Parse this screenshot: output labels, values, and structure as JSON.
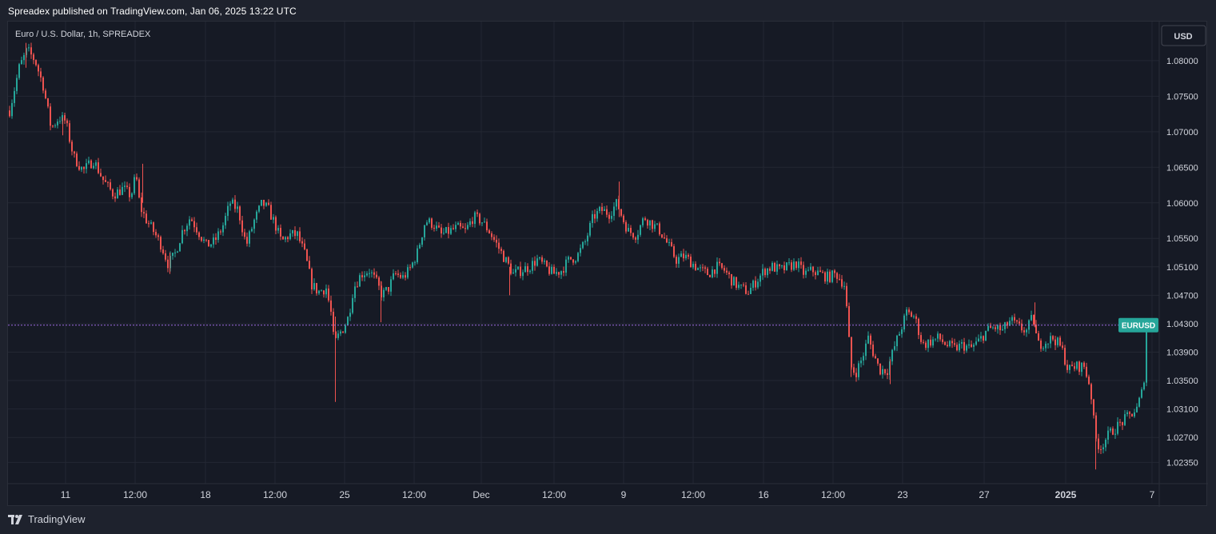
{
  "header": {
    "text": "Spreadex published on TradingView.com, Jan 06, 2025 13:22 UTC"
  },
  "footer": {
    "brand": "TradingView"
  },
  "colors": {
    "background": "#1e222d",
    "pane": "#161a25",
    "grid": "#232733",
    "axis_text": "#d1d4dc",
    "up": "#26a69a",
    "down": "#ef5350",
    "price_line": "#9c6ade",
    "label_bg": "#26a69a"
  },
  "chart_data": {
    "type": "candlestick",
    "title": "Euro / U.S. Dollar, 1h, SPREADEX",
    "currency": "USD",
    "symbol_label": "EURUSD",
    "last_price": 1.0428,
    "ylim": [
      1.0205,
      1.0855
    ],
    "y_ticks": [
      "1.08000",
      "1.07500",
      "1.07000",
      "1.06500",
      "1.06000",
      "1.05500",
      "1.05100",
      "1.04700",
      "1.04300",
      "1.03900",
      "1.03500",
      "1.03100",
      "1.02700",
      "1.02350"
    ],
    "x_ticks": [
      "11",
      "12:00",
      "18",
      "12:00",
      "25",
      "12:00",
      "Dec",
      "12:00",
      "9",
      "12:00",
      "16",
      "12:00",
      "23",
      "27",
      "2025",
      "7"
    ],
    "grid": true,
    "price_path": [
      [
        0,
        1.073
      ],
      [
        12,
        1.079
      ],
      [
        22,
        1.0815
      ],
      [
        32,
        1.08
      ],
      [
        42,
        1.0765
      ],
      [
        52,
        1.0705
      ],
      [
        62,
        1.072
      ],
      [
        70,
        1.0715
      ],
      [
        80,
        1.0665
      ],
      [
        92,
        1.0645
      ],
      [
        105,
        1.066
      ],
      [
        118,
        1.063
      ],
      [
        130,
        1.0612
      ],
      [
        142,
        1.062
      ],
      [
        152,
        1.061
      ],
      [
        158,
        1.064
      ],
      [
        163,
        1.0595
      ],
      [
        170,
        1.0578
      ],
      [
        180,
        1.056
      ],
      [
        190,
        1.054
      ],
      [
        198,
        1.0515
      ],
      [
        206,
        1.0525
      ],
      [
        216,
        1.056
      ],
      [
        226,
        1.058
      ],
      [
        236,
        1.056
      ],
      [
        246,
        1.054
      ],
      [
        256,
        1.0545
      ],
      [
        266,
        1.0565
      ],
      [
        276,
        1.06
      ],
      [
        286,
        1.059
      ],
      [
        296,
        1.054
      ],
      [
        306,
        1.0575
      ],
      [
        316,
        1.06
      ],
      [
        324,
        1.059
      ],
      [
        332,
        1.057
      ],
      [
        340,
        1.0545
      ],
      [
        350,
        1.0555
      ],
      [
        360,
        1.0555
      ],
      [
        370,
        1.0525
      ],
      [
        378,
        1.0485
      ],
      [
        386,
        1.0475
      ],
      [
        396,
        1.048
      ],
      [
        402,
        1.0445
      ],
      [
        406,
        1.04
      ],
      [
        412,
        1.0415
      ],
      [
        418,
        1.0425
      ],
      [
        424,
        1.044
      ],
      [
        430,
        1.048
      ],
      [
        440,
        1.05
      ],
      [
        450,
        1.0505
      ],
      [
        458,
        1.049
      ],
      [
        466,
        1.047
      ],
      [
        474,
        1.048
      ],
      [
        482,
        1.05
      ],
      [
        492,
        1.0495
      ],
      [
        500,
        1.0505
      ],
      [
        510,
        1.053
      ],
      [
        520,
        1.0575
      ],
      [
        530,
        1.057
      ],
      [
        540,
        1.0555
      ],
      [
        550,
        1.056
      ],
      [
        560,
        1.0565
      ],
      [
        570,
        1.056
      ],
      [
        580,
        1.058
      ],
      [
        590,
        1.0575
      ],
      [
        600,
        1.056
      ],
      [
        610,
        1.054
      ],
      [
        620,
        1.052
      ],
      [
        630,
        1.05
      ],
      [
        640,
        1.0505
      ],
      [
        650,
        1.051
      ],
      [
        660,
        1.052
      ],
      [
        670,
        1.051
      ],
      [
        680,
        1.05
      ],
      [
        690,
        1.0505
      ],
      [
        700,
        1.052
      ],
      [
        710,
        1.0525
      ],
      [
        720,
        1.0545
      ],
      [
        730,
        1.058
      ],
      [
        740,
        1.059
      ],
      [
        750,
        1.0585
      ],
      [
        760,
        1.06
      ],
      [
        766,
        1.058
      ],
      [
        774,
        1.056
      ],
      [
        784,
        1.0555
      ],
      [
        794,
        1.058
      ],
      [
        804,
        1.057
      ],
      [
        814,
        1.056
      ],
      [
        824,
        1.054
      ],
      [
        834,
        1.052
      ],
      [
        844,
        1.0525
      ],
      [
        854,
        1.0515
      ],
      [
        864,
        1.0505
      ],
      [
        874,
        1.05
      ],
      [
        884,
        1.051
      ],
      [
        894,
        1.0505
      ],
      [
        904,
        1.049
      ],
      [
        914,
        1.048
      ],
      [
        924,
        1.0475
      ],
      [
        934,
        1.049
      ],
      [
        944,
        1.0505
      ],
      [
        954,
        1.051
      ],
      [
        964,
        1.0505
      ],
      [
        974,
        1.051
      ],
      [
        984,
        1.0515
      ],
      [
        994,
        1.05
      ],
      [
        1004,
        1.0505
      ],
      [
        1014,
        1.05
      ],
      [
        1024,
        1.0495
      ],
      [
        1034,
        1.05
      ],
      [
        1044,
        1.0485
      ],
      [
        1048,
        1.044
      ],
      [
        1052,
        1.037
      ],
      [
        1058,
        1.036
      ],
      [
        1066,
        1.038
      ],
      [
        1074,
        1.041
      ],
      [
        1080,
        1.039
      ],
      [
        1088,
        1.0365
      ],
      [
        1098,
        1.0365
      ],
      [
        1106,
        1.0395
      ],
      [
        1114,
        1.042
      ],
      [
        1122,
        1.0445
      ],
      [
        1132,
        1.044
      ],
      [
        1142,
        1.04
      ],
      [
        1152,
        1.0405
      ],
      [
        1162,
        1.041
      ],
      [
        1172,
        1.04
      ],
      [
        1182,
        1.0395
      ],
      [
        1192,
        1.04
      ],
      [
        1202,
        1.0395
      ],
      [
        1212,
        1.0405
      ],
      [
        1222,
        1.042
      ],
      [
        1232,
        1.0425
      ],
      [
        1242,
        1.042
      ],
      [
        1252,
        1.0435
      ],
      [
        1262,
        1.0425
      ],
      [
        1272,
        1.042
      ],
      [
        1280,
        1.044
      ],
      [
        1286,
        1.04
      ],
      [
        1296,
        1.0405
      ],
      [
        1306,
        1.041
      ],
      [
        1316,
        1.0395
      ],
      [
        1324,
        1.0365
      ],
      [
        1334,
        1.037
      ],
      [
        1344,
        1.037
      ],
      [
        1352,
        1.034
      ],
      [
        1358,
        1.027
      ],
      [
        1364,
        1.0255
      ],
      [
        1372,
        1.027
      ],
      [
        1380,
        1.028
      ],
      [
        1390,
        1.029
      ],
      [
        1400,
        1.03
      ],
      [
        1410,
        1.031
      ],
      [
        1418,
        1.034
      ],
      [
        1424,
        1.0428
      ]
    ],
    "spikes": [
      [
        22,
        1.0825,
        1.079
      ],
      [
        68,
        1.072,
        1.0695
      ],
      [
        168,
        1.0655,
        1.06
      ],
      [
        202,
        1.053,
        1.05
      ],
      [
        409,
        1.044,
        1.032
      ],
      [
        466,
        1.049,
        1.0432
      ],
      [
        627,
        1.051,
        1.047
      ],
      [
        764,
        1.063,
        1.058
      ],
      [
        1054,
        1.04,
        1.0355
      ],
      [
        1103,
        1.038,
        1.0345
      ],
      [
        1284,
        1.046,
        1.0425
      ],
      [
        1360,
        1.028,
        1.0225
      ]
    ]
  }
}
